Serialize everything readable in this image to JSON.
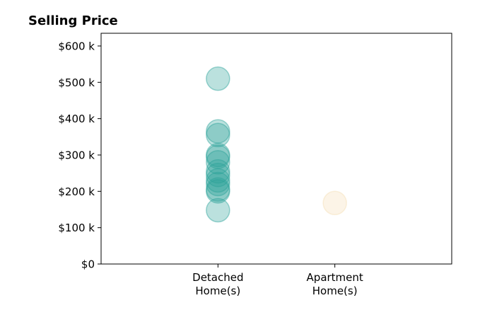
{
  "chart_data": {
    "type": "scatter",
    "title": "Selling Price",
    "xlabel": "",
    "ylabel": "",
    "categories": [
      "Detached Home(s)",
      "Apartment Home(s)"
    ],
    "category_label_lines": [
      [
        "Detached",
        "Home(s)"
      ],
      [
        "Apartment",
        "Home(s)"
      ]
    ],
    "xlim": [
      -1,
      2
    ],
    "ylim": [
      0,
      635000
    ],
    "y_ticks": [
      0,
      100000,
      200000,
      300000,
      400000,
      500000,
      600000
    ],
    "y_tick_labels": [
      "$0",
      "$100 k",
      "$200 k",
      "$300 k",
      "$400 k",
      "$500 k",
      "$600 k"
    ],
    "grid": false,
    "legend": "none",
    "series": [
      {
        "category": "Detached Home(s)",
        "color": "#2aa198",
        "values": [
          510000,
          365000,
          355000,
          300000,
          295000,
          280000,
          255000,
          245000,
          230000,
          220000,
          205000,
          200000,
          148000
        ]
      },
      {
        "category": "Apartment Home(s)",
        "color": "#f5deb3",
        "values": [
          168000
        ]
      }
    ]
  }
}
